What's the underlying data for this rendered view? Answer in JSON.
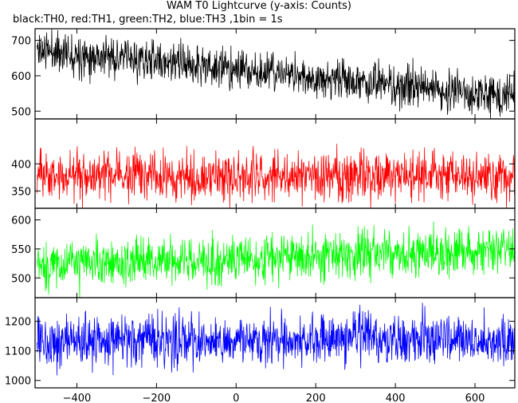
{
  "title": "WAM T0 Lightcurve (y-axis: Counts)",
  "subtitle": "black:TH0, red:TH1, green:TH2, blue:TH3 ,1bin = 1s",
  "colors": {
    "TH0": "#000000",
    "TH1": "#ff0000",
    "TH2": "#00ff00",
    "TH3": "#0000ff",
    "frame": "#000000"
  },
  "chart_data": [
    {
      "type": "line",
      "name": "TH0",
      "color": "#000000",
      "xlim": [
        -505,
        700
      ],
      "ylim": [
        478,
        733
      ],
      "yticks": [
        500,
        600,
        700
      ],
      "x_range": [
        -500,
        700
      ],
      "trend": {
        "start": 675,
        "end": 537
      },
      "noise_sd": 28,
      "seed": 11
    },
    {
      "type": "line",
      "name": "TH1",
      "color": "#ff0000",
      "xlim": [
        -505,
        700
      ],
      "ylim": [
        318,
        483
      ],
      "yticks": [
        350,
        400
      ],
      "x_range": [
        -500,
        700
      ],
      "trend": {
        "start": 380,
        "end": 375
      },
      "noise_sd": 22,
      "seed": 23
    },
    {
      "type": "line",
      "name": "TH2",
      "color": "#00ff00",
      "xlim": [
        -505,
        700
      ],
      "ylim": [
        466,
        620
      ],
      "yticks": [
        500,
        550,
        600
      ],
      "x_range": [
        -500,
        700
      ],
      "trend": {
        "start": 522,
        "end": 548
      },
      "noise_sd": 20,
      "seed": 37
    },
    {
      "type": "line",
      "name": "TH3",
      "color": "#0000ff",
      "xlim": [
        -505,
        700
      ],
      "ylim": [
        975,
        1280
      ],
      "yticks": [
        1000,
        1100,
        1200
      ],
      "x_range": [
        -500,
        700
      ],
      "trend": {
        "start": 1135,
        "end": 1135
      },
      "noise_sd": 42,
      "seed": 53,
      "xticks": [
        -400,
        -200,
        0,
        200,
        400,
        600
      ]
    }
  ]
}
